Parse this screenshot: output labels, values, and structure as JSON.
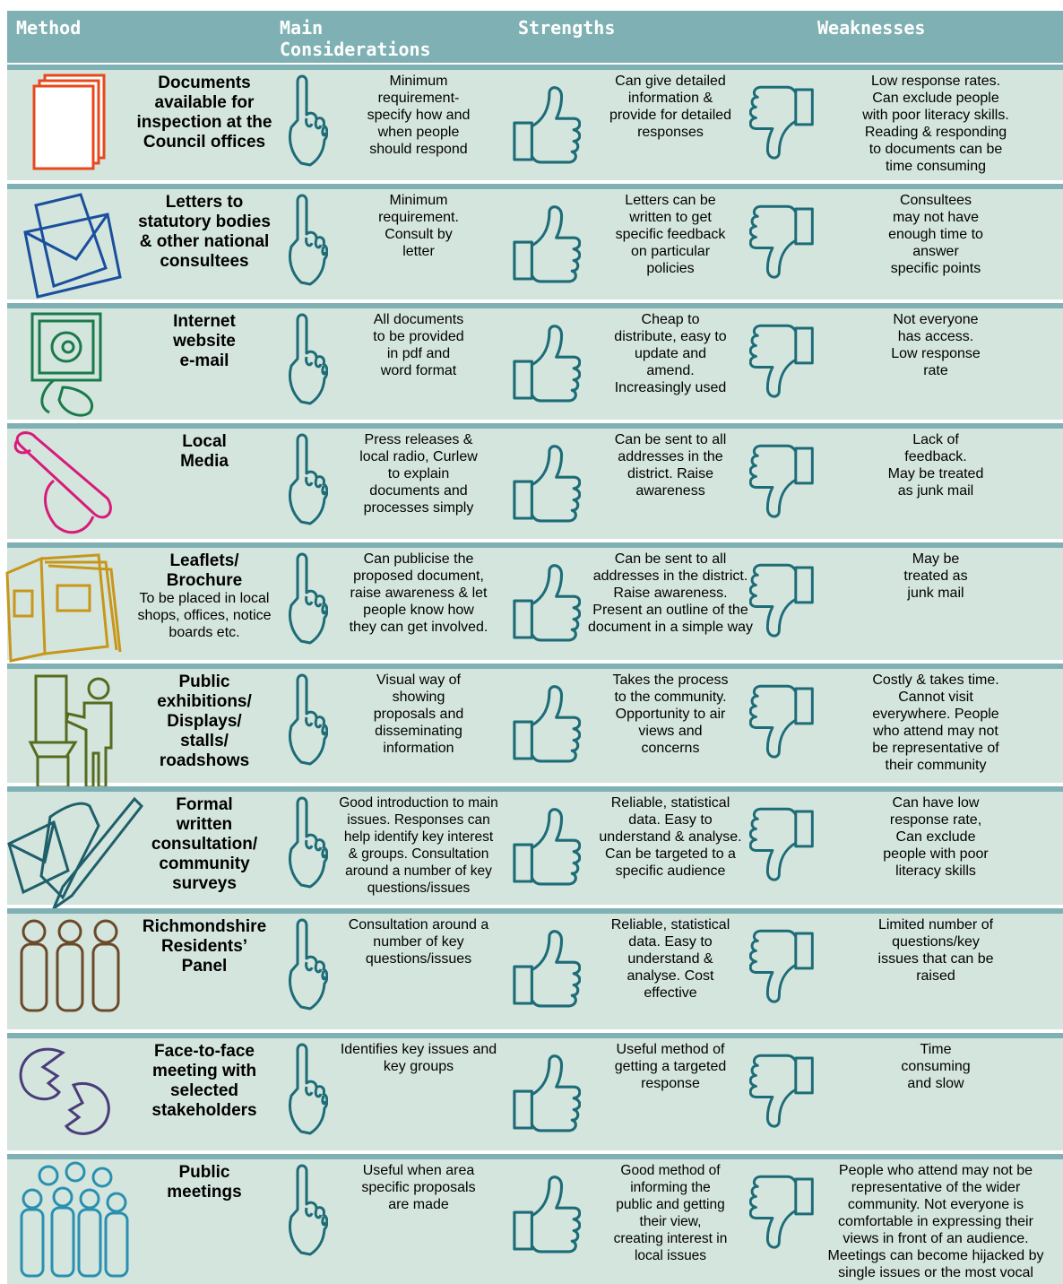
{
  "header": {
    "method": "Method",
    "considerations": [
      "Main",
      "Considerations"
    ],
    "strengths": "Strengths",
    "weaknesses": "Weaknesses"
  },
  "rows": [
    {
      "method": [
        "Documents",
        "available for",
        "inspection at the",
        "Council offices"
      ],
      "considerations": [
        "Minimum",
        "requirement-",
        "specify how and",
        "when people",
        "should respond"
      ],
      "strengths": [
        "Can give detailed",
        "information &",
        "provide for detailed",
        "responses"
      ],
      "weaknesses": [
        "Low response rates.",
        "Can exclude people",
        "with poor literacy skills.",
        "Reading & responding",
        "to documents can be",
        "time consuming"
      ]
    },
    {
      "method": [
        "Letters to",
        "statutory bodies",
        "& other national",
        "consultees"
      ],
      "considerations": [
        "Minimum",
        "requirement.",
        "Consult by",
        "letter"
      ],
      "strengths": [
        "Letters can be",
        "written to get",
        "specific feedback",
        "on particular",
        "policies"
      ],
      "weaknesses": [
        "Consultees",
        "may not have",
        "enough time to",
        "answer",
        "specific points"
      ]
    },
    {
      "method": [
        "Internet",
        "website",
        "e-mail"
      ],
      "considerations": [
        "All documents",
        "to be provided",
        "in pdf and",
        "word format"
      ],
      "strengths": [
        "Cheap to",
        "distribute, easy to",
        "update and",
        "amend.",
        "Increasingly used"
      ],
      "weaknesses": [
        "Not everyone",
        "has access.",
        "Low response",
        "rate"
      ]
    },
    {
      "method": [
        "Local",
        "Media"
      ],
      "considerations": [
        "Press releases &",
        "local radio, Curlew",
        "to explain",
        "documents and",
        "processes simply"
      ],
      "strengths": [
        "Can be sent to all",
        "addresses in the",
        "district.  Raise",
        "awareness"
      ],
      "weaknesses": [
        "Lack of",
        "feedback.",
        "May be treated",
        "as junk mail"
      ]
    },
    {
      "method": [
        "Leaflets/",
        "Brochure"
      ],
      "method_note": [
        "To be placed in local",
        "shops, offices, notice",
        "boards etc."
      ],
      "considerations": [
        "Can publicise the",
        "proposed document,",
        "raise awareness & let",
        "people know how",
        "they can get involved."
      ],
      "strengths": [
        "Can be sent to all",
        "addresses in the district.",
        "Raise awareness.",
        "Present an outline of the",
        "document in a simple way"
      ],
      "weaknesses": [
        "May be",
        "treated as",
        "junk mail"
      ]
    },
    {
      "method": [
        "Public",
        "exhibitions/",
        "Displays/",
        "stalls/",
        "roadshows"
      ],
      "considerations": [
        "Visual way of",
        "showing",
        "proposals and",
        "disseminating",
        "information"
      ],
      "strengths": [
        "Takes the process",
        "to the community.",
        "Opportunity to air",
        "views and",
        "concerns"
      ],
      "weaknesses": [
        "Costly & takes time.",
        "Cannot visit",
        "everywhere. People",
        "who attend may not",
        "be representative of",
        "their community"
      ]
    },
    {
      "method": [
        "Formal",
        "written",
        "consultation/",
        "community",
        "surveys"
      ],
      "considerations": [
        "Good introduction to main",
        "issues. Responses can",
        "help identify key interest",
        "& groups. Consultation",
        "around a number of key",
        "questions/issues"
      ],
      "strengths": [
        "Reliable, statistical",
        "data. Easy to",
        "understand & analyse.",
        "Can be targeted to a",
        "specific audience"
      ],
      "weaknesses": [
        "Can have low",
        "response rate,",
        "Can exclude",
        "people with poor",
        "literacy skills"
      ]
    },
    {
      "method": [
        "Richmondshire",
        "Residents’",
        "Panel"
      ],
      "considerations": [
        "Consultation around a",
        "number of key",
        "questions/issues"
      ],
      "strengths": [
        "Reliable, statistical",
        "data. Easy to",
        "understand &",
        "analyse. Cost",
        "effective"
      ],
      "weaknesses": [
        "Limited number of",
        "questions/key",
        "issues that can be",
        "raised"
      ]
    },
    {
      "method": [
        "Face-to-face",
        "meeting with",
        "selected",
        "stakeholders"
      ],
      "considerations": [
        "Identifies key issues and",
        "key groups"
      ],
      "strengths": [
        "Useful method of",
        "getting a targeted",
        "response"
      ],
      "weaknesses": [
        "Time",
        "consuming",
        "and slow"
      ]
    },
    {
      "method": [
        "Public",
        "meetings"
      ],
      "considerations": [
        "Useful when area",
        "specific proposals",
        "are made"
      ],
      "strengths": [
        "Good method of",
        "informing the",
        "public and getting",
        "their view,",
        "creating interest in",
        "local issues"
      ],
      "weaknesses": [
        "People who attend may not be",
        "representative of the wider",
        "community. Not everyone is",
        "comfortable in expressing their",
        "views in front of an audience.",
        "Meetings can become hijacked by",
        "single issues or the most vocal"
      ]
    }
  ]
}
